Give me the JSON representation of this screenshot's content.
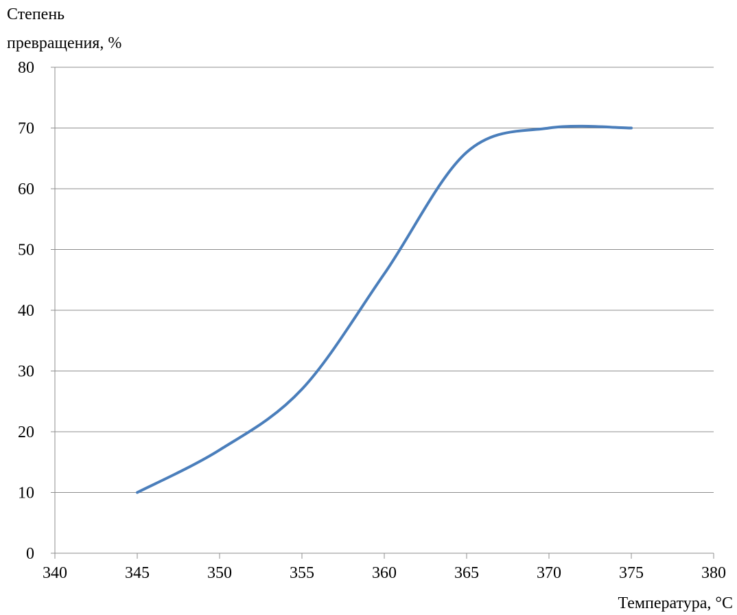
{
  "chart_data": {
    "type": "line",
    "title": "",
    "ylabel_lines": [
      "Степень",
      "превращения, %"
    ],
    "xlabel": "Температура, °C",
    "xlim": [
      340,
      380
    ],
    "ylim": [
      0,
      80
    ],
    "x_ticks": [
      340,
      345,
      350,
      355,
      360,
      365,
      370,
      375,
      380
    ],
    "y_ticks": [
      0,
      10,
      20,
      30,
      40,
      50,
      60,
      70,
      80
    ],
    "grid": "horizontal",
    "color": "#4a7ebb",
    "series": [
      {
        "x": [
          345,
          350,
          355,
          360,
          365,
          370,
          375
        ],
        "y": [
          10,
          17,
          27,
          46,
          66,
          70,
          70
        ]
      }
    ]
  }
}
